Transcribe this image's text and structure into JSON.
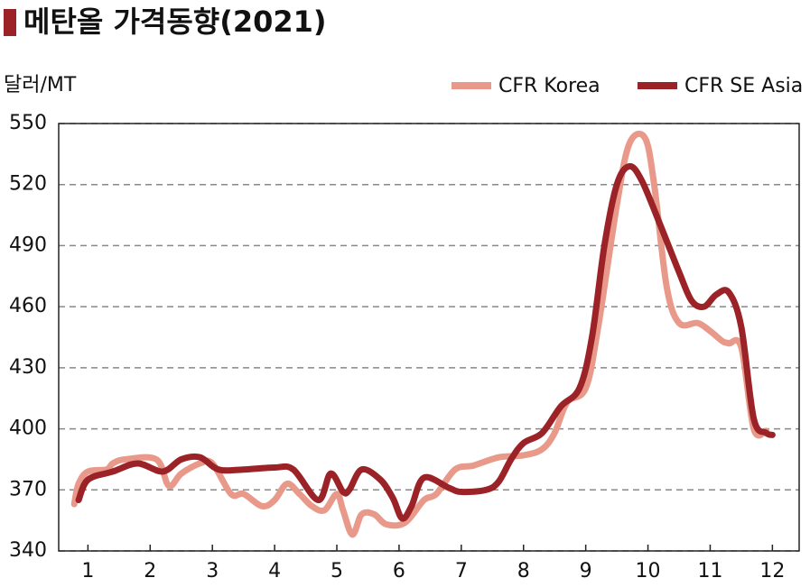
{
  "chart_data": {
    "type": "line",
    "title": "메탄올 가격동향(2021)",
    "y_label": "달러/MT",
    "xlim": [
      0.53,
      12.43
    ],
    "xticks": [
      1,
      2,
      3,
      4,
      5,
      6,
      7,
      8,
      9,
      10,
      11,
      12
    ],
    "ylim": [
      340,
      550
    ],
    "yticks": [
      340,
      370,
      400,
      430,
      460,
      490,
      520,
      550
    ],
    "grid": true,
    "legend": "top-right",
    "series": [
      {
        "name": "CFR Korea",
        "color": "#e8998a",
        "x": [
          0.78,
          0.85,
          1.0,
          1.3,
          1.4,
          1.6,
          2.1,
          2.3,
          2.5,
          2.8,
          3.0,
          3.3,
          3.5,
          3.8,
          4.0,
          4.2,
          4.4,
          4.6,
          4.8,
          5.0,
          5.1,
          5.25,
          5.4,
          5.6,
          5.8,
          6.1,
          6.4,
          6.6,
          6.9,
          7.2,
          7.6,
          8.0,
          8.3,
          8.5,
          8.7,
          9.0,
          9.2,
          9.5,
          9.7,
          9.95,
          10.1,
          10.3,
          10.5,
          10.8,
          11.0,
          11.2,
          11.3,
          11.5,
          11.7,
          11.9
        ],
        "values": [
          363,
          373,
          379,
          380,
          383,
          385,
          385,
          372,
          378,
          383,
          383,
          368,
          368,
          362,
          365,
          373,
          368,
          362,
          360,
          368,
          360,
          348,
          358,
          358,
          353,
          354,
          365,
          368,
          380,
          382,
          386,
          387,
          390,
          398,
          413,
          420,
          450,
          510,
          540,
          543,
          520,
          470,
          452,
          452,
          448,
          443,
          442,
          440,
          400,
          399
        ]
      },
      {
        "name": "CFR SE Asia",
        "color": "#9b2226",
        "x": [
          0.85,
          1.0,
          1.4,
          1.8,
          2.2,
          2.5,
          2.8,
          3.1,
          3.5,
          4.0,
          4.3,
          4.7,
          4.9,
          5.1,
          5.2,
          5.4,
          5.7,
          5.9,
          6.05,
          6.2,
          6.4,
          6.8,
          7.0,
          7.4,
          7.6,
          7.8,
          8.0,
          8.3,
          8.6,
          8.9,
          9.1,
          9.3,
          9.5,
          9.7,
          9.9,
          10.2,
          10.5,
          10.7,
          10.9,
          11.1,
          11.3,
          11.5,
          11.7,
          11.9,
          12.0
        ],
        "values": [
          365,
          375,
          379,
          383,
          379,
          385,
          386,
          380,
          380,
          381,
          380,
          365,
          378,
          369,
          370,
          380,
          375,
          366,
          356,
          362,
          376,
          371,
          369,
          370,
          374,
          385,
          393,
          398,
          411,
          420,
          445,
          490,
          520,
          529,
          522,
          500,
          477,
          463,
          460,
          466,
          467,
          450,
          405,
          398,
          397
        ]
      }
    ]
  }
}
